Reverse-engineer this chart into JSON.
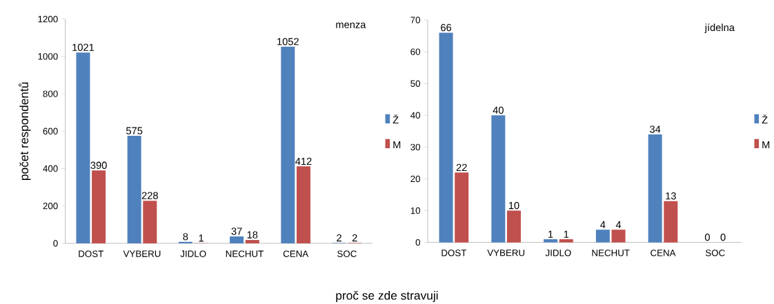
{
  "chart_data": [
    {
      "type": "bar",
      "title": "menza",
      "ylabel": "počet respondentů",
      "xlabel": "proč se zde stravuji",
      "categories": [
        "DOST",
        "VYBERU",
        "JIDLO",
        "NECHUT",
        "CENA",
        "SOC"
      ],
      "series": [
        {
          "name": "Ž",
          "color": "#4f81bd",
          "values": [
            1021,
            575,
            8,
            37,
            1052,
            2
          ]
        },
        {
          "name": "M",
          "color": "#c0504d",
          "values": [
            390,
            228,
            1,
            18,
            412,
            2
          ]
        }
      ],
      "ylim": [
        0,
        1200
      ],
      "yticks": [
        0,
        200,
        400,
        600,
        800,
        1000,
        1200
      ],
      "data_labels": true,
      "legend": "right"
    },
    {
      "type": "bar",
      "title": "jídelna",
      "categories": [
        "DOST",
        "VYBERU",
        "JIDLO",
        "NECHUT",
        "CENA",
        "SOC"
      ],
      "series": [
        {
          "name": "Ž",
          "color": "#4f81bd",
          "values": [
            66,
            40,
            1,
            4,
            34,
            0
          ]
        },
        {
          "name": "M",
          "color": "#c0504d",
          "values": [
            22,
            10,
            1,
            4,
            13,
            0
          ]
        }
      ],
      "ylim": [
        0,
        70
      ],
      "yticks": [
        0,
        10,
        20,
        30,
        40,
        50,
        60,
        70
      ],
      "data_labels": true,
      "legend": "right"
    }
  ]
}
